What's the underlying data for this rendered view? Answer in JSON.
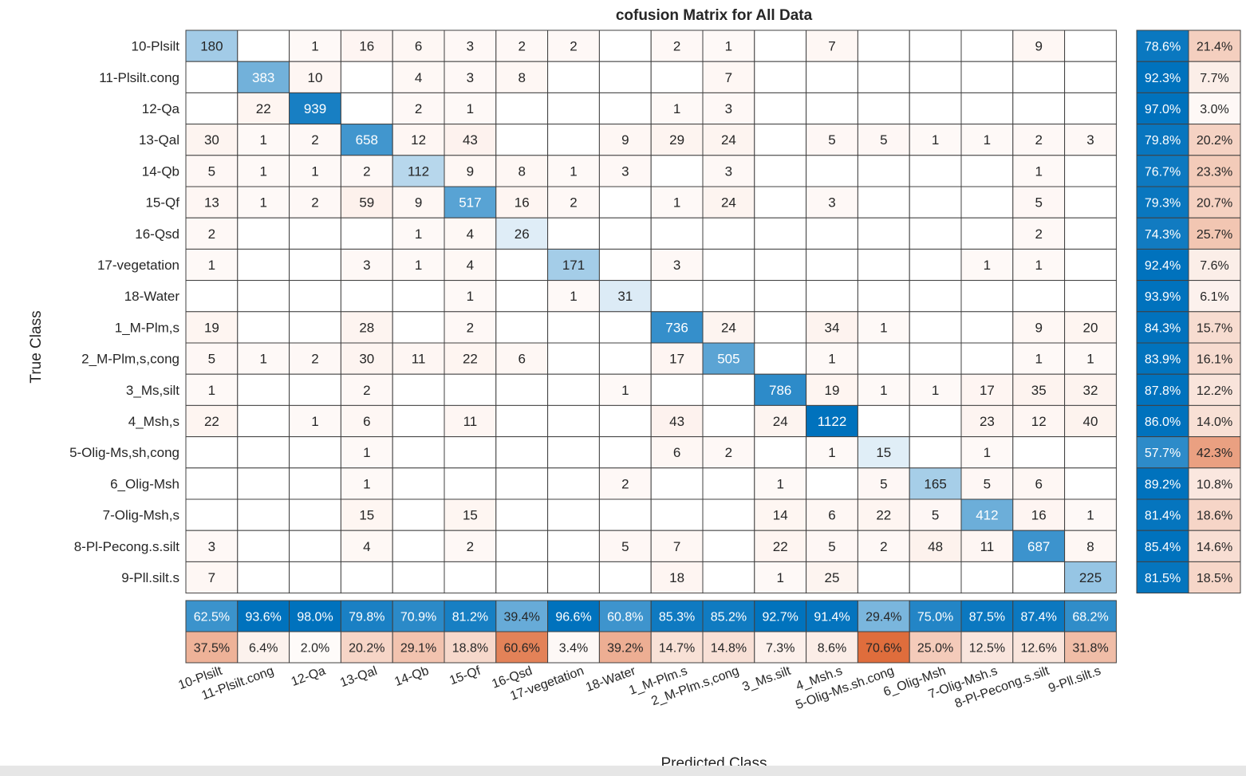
{
  "chart_data": {
    "type": "heatmap",
    "title": "cofusion Matrix for All Data",
    "xlabel": "Predicted Class",
    "ylabel": "True Class",
    "row_labels": [
      "10-Plsilt",
      "11-Plsilt.cong",
      "12-Qa",
      "13-Qal",
      "14-Qb",
      "15-Qf",
      "16-Qsd",
      "17-vegetation",
      "18-Water",
      "1_M-Plm,s",
      "2_M-Plm,s,cong",
      "3_Ms,silt",
      "4_Msh,s",
      "5-Olig-Ms,sh,cong",
      "6_Olig-Msh",
      "7-Olig-Msh,s",
      "8-Pl-Pecong.s.silt",
      "9-Pll.silt.s"
    ],
    "col_labels": [
      "10-Plsilt",
      "11-Plsilt.cong",
      "12-Qa",
      "13-Qal",
      "14-Qb",
      "15-Qf",
      "16-Qsd",
      "17-vegetation",
      "18-Water",
      "1_M-Plm.s",
      "2_M-Plm.s,cong",
      "3_Ms.silt",
      "4_Msh.s",
      "5-Olig-Ms.sh.cong",
      "6_Olig-Msh",
      "7-Olig-Msh.s",
      "8-Pl-Pecong.s.silt",
      "9-Pll.silt.s"
    ],
    "matrix": [
      [
        180,
        null,
        1,
        16,
        6,
        3,
        2,
        2,
        null,
        2,
        1,
        null,
        7,
        null,
        null,
        null,
        9,
        null
      ],
      [
        null,
        383,
        10,
        null,
        4,
        3,
        8,
        null,
        null,
        null,
        7,
        null,
        null,
        null,
        null,
        null,
        null,
        null
      ],
      [
        null,
        22,
        939,
        null,
        2,
        1,
        null,
        null,
        null,
        1,
        3,
        null,
        null,
        null,
        null,
        null,
        null,
        null
      ],
      [
        30,
        1,
        2,
        658,
        12,
        43,
        null,
        null,
        9,
        29,
        24,
        null,
        5,
        5,
        1,
        1,
        2,
        3
      ],
      [
        5,
        1,
        1,
        2,
        112,
        9,
        8,
        1,
        3,
        null,
        3,
        null,
        null,
        null,
        null,
        null,
        1,
        null
      ],
      [
        13,
        1,
        2,
        59,
        9,
        517,
        16,
        2,
        null,
        1,
        24,
        null,
        3,
        null,
        null,
        null,
        5,
        null
      ],
      [
        2,
        null,
        null,
        null,
        1,
        4,
        26,
        null,
        null,
        null,
        null,
        null,
        null,
        null,
        null,
        null,
        2,
        null
      ],
      [
        1,
        null,
        null,
        3,
        1,
        4,
        null,
        171,
        null,
        3,
        null,
        null,
        null,
        null,
        null,
        1,
        1,
        null
      ],
      [
        null,
        null,
        null,
        null,
        null,
        1,
        null,
        1,
        31,
        null,
        null,
        null,
        null,
        null,
        null,
        null,
        null,
        null
      ],
      [
        19,
        null,
        null,
        28,
        null,
        2,
        null,
        null,
        null,
        736,
        24,
        null,
        34,
        1,
        null,
        null,
        9,
        20
      ],
      [
        5,
        1,
        2,
        30,
        11,
        22,
        6,
        null,
        null,
        17,
        505,
        null,
        1,
        null,
        null,
        null,
        1,
        1
      ],
      [
        1,
        null,
        null,
        2,
        null,
        null,
        null,
        null,
        1,
        null,
        null,
        786,
        19,
        1,
        1,
        17,
        35,
        32
      ],
      [
        22,
        null,
        1,
        6,
        null,
        11,
        null,
        null,
        null,
        43,
        null,
        24,
        1122,
        null,
        null,
        23,
        12,
        40
      ],
      [
        null,
        null,
        null,
        1,
        null,
        null,
        null,
        null,
        null,
        6,
        2,
        null,
        1,
        15,
        null,
        1,
        null,
        null
      ],
      [
        null,
        null,
        null,
        1,
        null,
        null,
        null,
        null,
        2,
        null,
        null,
        1,
        null,
        5,
        165,
        5,
        6,
        null
      ],
      [
        null,
        null,
        null,
        15,
        null,
        15,
        null,
        null,
        null,
        null,
        null,
        14,
        6,
        22,
        5,
        412,
        16,
        1
      ],
      [
        3,
        null,
        null,
        4,
        null,
        2,
        null,
        null,
        5,
        7,
        null,
        22,
        5,
        2,
        48,
        11,
        687,
        8
      ],
      [
        7,
        null,
        null,
        null,
        null,
        null,
        null,
        null,
        null,
        18,
        null,
        1,
        25,
        null,
        null,
        null,
        null,
        225
      ]
    ],
    "row_summary": [
      [
        "78.6%",
        "21.4%"
      ],
      [
        "92.3%",
        "7.7%"
      ],
      [
        "97.0%",
        "3.0%"
      ],
      [
        "79.8%",
        "20.2%"
      ],
      [
        "76.7%",
        "23.3%"
      ],
      [
        "79.3%",
        "20.7%"
      ],
      [
        "74.3%",
        "25.7%"
      ],
      [
        "92.4%",
        "7.6%"
      ],
      [
        "93.9%",
        "6.1%"
      ],
      [
        "84.3%",
        "15.7%"
      ],
      [
        "83.9%",
        "16.1%"
      ],
      [
        "87.8%",
        "12.2%"
      ],
      [
        "86.0%",
        "14.0%"
      ],
      [
        "57.7%",
        "42.3%"
      ],
      [
        "89.2%",
        "10.8%"
      ],
      [
        "81.4%",
        "18.6%"
      ],
      [
        "85.4%",
        "14.6%"
      ],
      [
        "81.5%",
        "18.5%"
      ]
    ],
    "col_summary_correct": [
      "62.5%",
      "93.6%",
      "98.0%",
      "79.8%",
      "70.9%",
      "81.2%",
      "39.4%",
      "96.6%",
      "60.8%",
      "85.3%",
      "85.2%",
      "92.7%",
      "91.4%",
      "29.4%",
      "75.0%",
      "87.5%",
      "87.4%",
      "68.2%"
    ],
    "col_summary_incorrect": [
      "37.5%",
      "6.4%",
      "2.0%",
      "20.2%",
      "29.1%",
      "18.8%",
      "60.6%",
      "3.4%",
      "39.2%",
      "14.7%",
      "14.8%",
      "7.3%",
      "8.6%",
      "70.6%",
      "25.0%",
      "12.5%",
      "12.6%",
      "31.8%"
    ],
    "colors": {
      "diag_high": "#0072bd",
      "diag_low": "#ffffff",
      "offdiag_tint": "#fdf1ec",
      "error_high": "#d95319",
      "grid": "#404040"
    }
  }
}
